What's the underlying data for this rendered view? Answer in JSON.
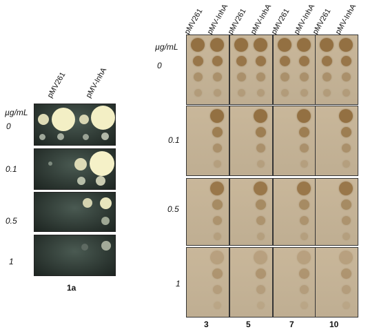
{
  "panel_left": {
    "headers": [
      "pMV261",
      "pMV-InhA"
    ],
    "unit_label": "µg/mL",
    "concentrations": [
      "0",
      "0.1",
      "0.5",
      "1"
    ],
    "caption": "1a"
  },
  "panel_right": {
    "headers": [
      "pMV261",
      "pMV-InhA",
      "pMV261",
      "pMV-InhA",
      "pMV261",
      "pMV-InhA",
      "pMV261",
      "pMV-InhA"
    ],
    "unit_label": "µg/mL",
    "concentrations": [
      "0",
      "0.1",
      "0.5",
      "1"
    ],
    "columns": [
      "3",
      "5",
      "7",
      "10"
    ]
  },
  "colors": {
    "left_plate": "#2e3a34",
    "colony": "#f1edc2",
    "right_plate": "#c4b396",
    "right_colony": "#8a6a3e"
  }
}
